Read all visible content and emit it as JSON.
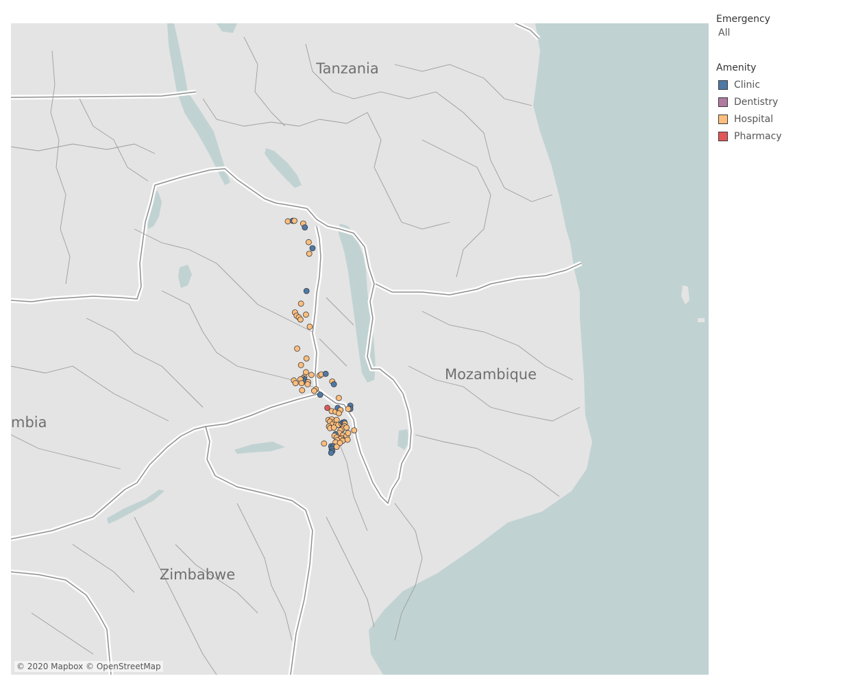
{
  "map": {
    "labels": [
      {
        "name": "label-tanzania",
        "text": "Tanzania"
      },
      {
        "name": "label-mozambique",
        "text": "Mozambique"
      },
      {
        "name": "label-zambia",
        "text": "mbia"
      },
      {
        "name": "label-zimbabwe",
        "text": "Zimbabwe"
      }
    ],
    "attribution": "© 2020 Mapbox © OpenStreetMap",
    "colors": {
      "land": "#e4e4e4",
      "water": "#c1d2d2",
      "border": "#8e8e8e",
      "border_halo": "#ffffff"
    },
    "points": [
      {
        "amenity": "Hospital",
        "lat": -9.58,
        "lon": 33.05
      },
      {
        "amenity": "Clinic",
        "lat": -9.57,
        "lon": 33.14
      },
      {
        "amenity": "Hospital",
        "lat": -9.57,
        "lon": 33.17
      },
      {
        "amenity": "Hospital",
        "lat": -9.62,
        "lon": 33.33
      },
      {
        "amenity": "Clinic",
        "lat": -9.69,
        "lon": 33.36
      },
      {
        "amenity": "Hospital",
        "lat": -9.96,
        "lon": 33.43
      },
      {
        "amenity": "Clinic",
        "lat": -10.07,
        "lon": 33.5
      },
      {
        "amenity": "Hospital",
        "lat": -10.17,
        "lon": 33.44
      },
      {
        "amenity": "Clinic",
        "lat": -10.85,
        "lon": 33.39
      },
      {
        "amenity": "Hospital",
        "lat": -11.08,
        "lon": 33.29
      },
      {
        "amenity": "Hospital",
        "lat": -11.24,
        "lon": 33.18
      },
      {
        "amenity": "Hospital",
        "lat": -11.3,
        "lon": 33.21
      },
      {
        "amenity": "Hospital",
        "lat": -11.33,
        "lon": 33.25
      },
      {
        "amenity": "Hospital",
        "lat": -11.28,
        "lon": 33.38
      },
      {
        "amenity": "Hospital",
        "lat": -11.37,
        "lon": 33.28
      },
      {
        "amenity": "Hospital",
        "lat": -11.5,
        "lon": 33.45
      },
      {
        "amenity": "Hospital",
        "lat": -11.9,
        "lon": 33.22
      },
      {
        "amenity": "Hospital",
        "lat": -12.08,
        "lon": 33.39
      },
      {
        "amenity": "Hospital",
        "lat": -12.2,
        "lon": 33.29
      },
      {
        "amenity": "Hospital",
        "lat": -12.33,
        "lon": 33.38
      },
      {
        "amenity": "Hospital",
        "lat": -12.38,
        "lon": 33.48
      },
      {
        "amenity": "Hospital",
        "lat": -12.39,
        "lon": 33.63
      },
      {
        "amenity": "Hospital",
        "lat": -12.37,
        "lon": 33.66
      },
      {
        "amenity": "Clinic",
        "lat": -12.36,
        "lon": 33.74
      },
      {
        "amenity": "Hospital",
        "lat": -12.42,
        "lon": 33.35
      },
      {
        "amenity": "Hospital",
        "lat": -12.44,
        "lon": 33.33
      },
      {
        "amenity": "Clinic",
        "lat": -12.46,
        "lon": 33.35
      },
      {
        "amenity": "Clinic",
        "lat": -12.49,
        "lon": 33.33
      },
      {
        "amenity": "Hospital",
        "lat": -12.48,
        "lon": 33.16
      },
      {
        "amenity": "Hospital",
        "lat": -12.53,
        "lon": 33.19
      },
      {
        "amenity": "Hospital",
        "lat": -12.51,
        "lon": 33.42
      },
      {
        "amenity": "Hospital",
        "lat": -12.46,
        "lon": 33.28
      },
      {
        "amenity": "Hospital",
        "lat": -12.53,
        "lon": 33.3
      },
      {
        "amenity": "Hospital",
        "lat": -12.55,
        "lon": 33.41
      },
      {
        "amenity": "Hospital",
        "lat": -12.66,
        "lon": 33.31
      },
      {
        "amenity": "Hospital",
        "lat": -12.64,
        "lon": 33.56
      },
      {
        "amenity": "Hospital",
        "lat": -12.67,
        "lon": 33.53
      },
      {
        "amenity": "Hospital",
        "lat": -12.5,
        "lon": 33.86
      },
      {
        "amenity": "Clinic",
        "lat": -12.55,
        "lon": 33.89
      },
      {
        "amenity": "Clinic",
        "lat": -12.74,
        "lon": 33.64
      },
      {
        "amenity": "Hospital",
        "lat": -12.8,
        "lon": 33.98
      },
      {
        "amenity": "Pharmacy",
        "lat": -12.98,
        "lon": 33.77
      },
      {
        "amenity": "Hospital",
        "lat": -13.04,
        "lon": 33.85
      },
      {
        "amenity": "Hospital",
        "lat": -13.05,
        "lon": 33.92
      },
      {
        "amenity": "Clinic",
        "lat": -12.98,
        "lon": 33.96
      },
      {
        "amenity": "Hospital",
        "lat": -13.02,
        "lon": 34.01
      },
      {
        "amenity": "Hospital",
        "lat": -13.08,
        "lon": 33.98
      },
      {
        "amenity": "Clinic",
        "lat": -12.94,
        "lon": 34.19
      },
      {
        "amenity": "Clinic",
        "lat": -13.0,
        "lon": 34.19
      },
      {
        "amenity": "Hospital",
        "lat": -13.0,
        "lon": 34.15
      },
      {
        "amenity": "Hospital",
        "lat": -13.2,
        "lon": 33.79
      },
      {
        "amenity": "Hospital",
        "lat": -13.19,
        "lon": 33.85
      },
      {
        "amenity": "Hospital",
        "lat": -13.23,
        "lon": 33.82
      },
      {
        "amenity": "Hospital",
        "lat": -13.24,
        "lon": 33.9
      },
      {
        "amenity": "Hospital",
        "lat": -13.2,
        "lon": 33.94
      },
      {
        "amenity": "Hospital",
        "lat": -13.28,
        "lon": 33.86
      },
      {
        "amenity": "Hospital",
        "lat": -13.29,
        "lon": 33.93
      },
      {
        "amenity": "Hospital",
        "lat": -13.29,
        "lon": 33.97
      },
      {
        "amenity": "Hospital",
        "lat": -13.32,
        "lon": 33.8
      },
      {
        "amenity": "Hospital",
        "lat": -13.35,
        "lon": 33.82
      },
      {
        "amenity": "Hospital",
        "lat": -13.34,
        "lon": 33.89
      },
      {
        "amenity": "Hospital",
        "lat": -13.27,
        "lon": 34.03
      },
      {
        "amenity": "Clinic",
        "lat": -13.25,
        "lon": 34.05
      },
      {
        "amenity": "Clinic",
        "lat": -13.24,
        "lon": 34.08
      },
      {
        "amenity": "Hospital",
        "lat": -13.27,
        "lon": 34.09
      },
      {
        "amenity": "Hospital",
        "lat": -13.31,
        "lon": 34.08
      },
      {
        "amenity": "Hospital",
        "lat": -13.34,
        "lon": 34.06
      },
      {
        "amenity": "Hospital",
        "lat": -13.37,
        "lon": 34.04
      },
      {
        "amenity": "Hospital",
        "lat": -13.34,
        "lon": 34.12
      },
      {
        "amenity": "Hospital",
        "lat": -13.39,
        "lon": 34.01
      },
      {
        "amenity": "Hospital",
        "lat": -13.44,
        "lon": 33.99
      },
      {
        "amenity": "Clinic",
        "lat": -13.46,
        "lon": 33.92
      },
      {
        "amenity": "Hospital",
        "lat": -13.49,
        "lon": 33.9
      },
      {
        "amenity": "Hospital",
        "lat": -13.52,
        "lon": 33.94
      },
      {
        "amenity": "Hospital",
        "lat": -13.48,
        "lon": 34.05
      },
      {
        "amenity": "Hospital",
        "lat": -13.49,
        "lon": 34.12
      },
      {
        "amenity": "Hospital",
        "lat": -13.44,
        "lon": 34.15
      },
      {
        "amenity": "Hospital",
        "lat": -13.39,
        "lon": 34.26
      },
      {
        "amenity": "Hospital",
        "lat": -13.53,
        "lon": 34.02
      },
      {
        "amenity": "Hospital",
        "lat": -13.55,
        "lon": 34.0
      },
      {
        "amenity": "Hospital",
        "lat": -13.57,
        "lon": 33.95
      },
      {
        "amenity": "Hospital",
        "lat": -13.58,
        "lon": 34.05
      },
      {
        "amenity": "Hospital",
        "lat": -13.61,
        "lon": 33.92
      },
      {
        "amenity": "Hospital",
        "lat": -13.62,
        "lon": 34.0
      },
      {
        "amenity": "Hospital",
        "lat": -13.56,
        "lon": 34.14
      },
      {
        "amenity": "Hospital",
        "lat": -13.63,
        "lon": 33.71
      },
      {
        "amenity": "Clinic",
        "lat": -13.68,
        "lon": 33.84
      },
      {
        "amenity": "Clinic",
        "lat": -13.68,
        "lon": 33.88
      },
      {
        "amenity": "Hospital",
        "lat": -13.69,
        "lon": 33.94
      },
      {
        "amenity": "Clinic",
        "lat": -13.73,
        "lon": 33.85
      },
      {
        "amenity": "Clinic",
        "lat": -13.77,
        "lon": 33.86
      },
      {
        "amenity": "Clinic",
        "lat": -13.8,
        "lon": 33.84
      }
    ]
  },
  "legend": {
    "emergency": {
      "title": "Emergency",
      "value": "All"
    },
    "amenity": {
      "title": "Amenity",
      "items": [
        {
          "label": "Clinic",
          "color": "#4e79a7"
        },
        {
          "label": "Dentistry",
          "color": "#b07aa1"
        },
        {
          "label": "Hospital",
          "color": "#ffbe7d"
        },
        {
          "label": "Pharmacy",
          "color": "#e15759"
        }
      ]
    }
  }
}
